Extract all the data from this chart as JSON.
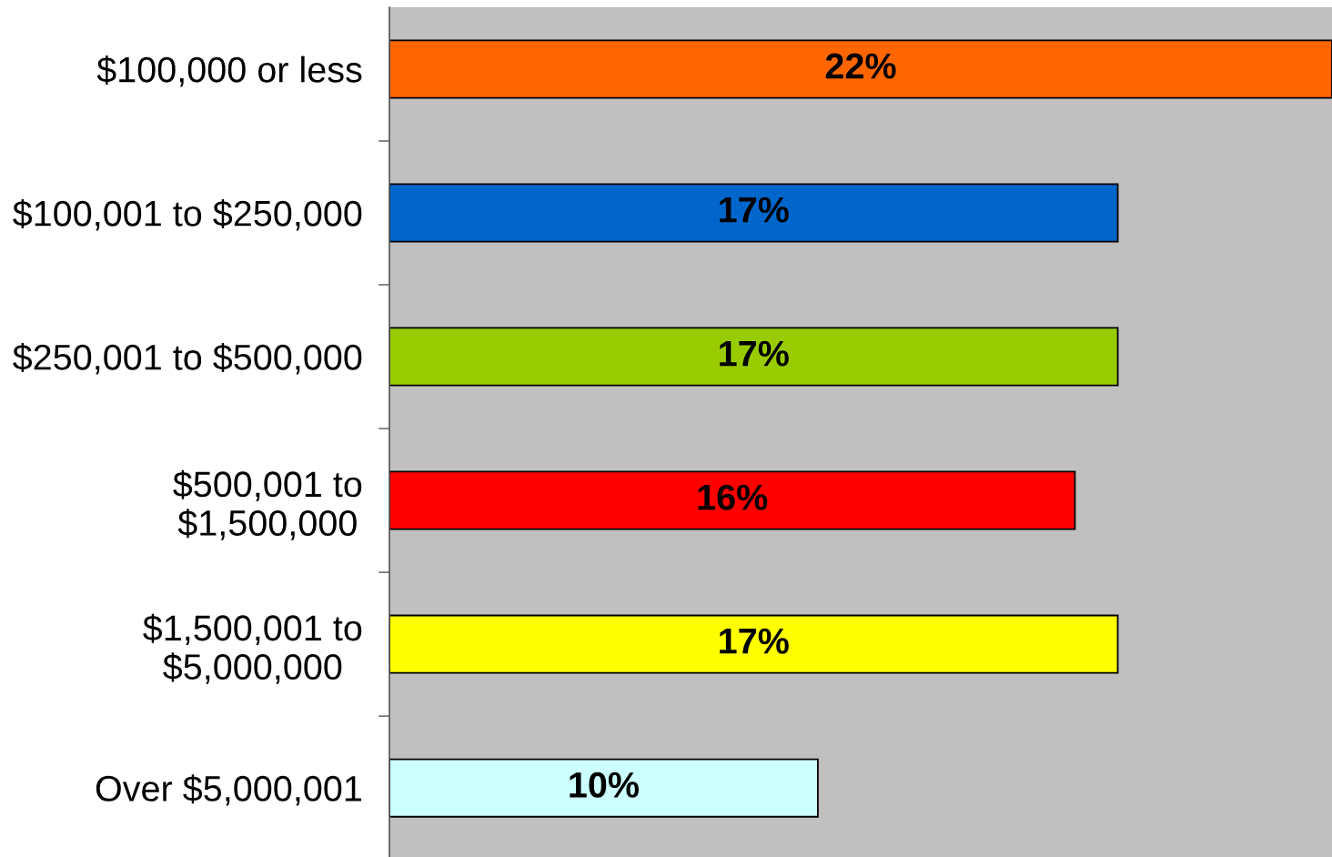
{
  "chart_data": {
    "type": "bar",
    "orientation": "horizontal",
    "categories": [
      "$100,000 or less",
      "$100,001 to $250,000",
      "$250,001 to $500,000",
      "$500,001 to $1,500,000",
      "$1,500,001 to $5,000,000",
      "Over $5,000,001"
    ],
    "values": [
      22,
      17,
      17,
      16,
      17,
      10
    ],
    "colors": [
      "#ff6600",
      "#0066cc",
      "#99cc00",
      "#ff0000",
      "#ffff00",
      "#ccffff"
    ],
    "value_labels": [
      "22%",
      "17%",
      "17%",
      "16%",
      "17%",
      "10%"
    ],
    "xlim": [
      0,
      22
    ],
    "tick_labels": "y"
  }
}
